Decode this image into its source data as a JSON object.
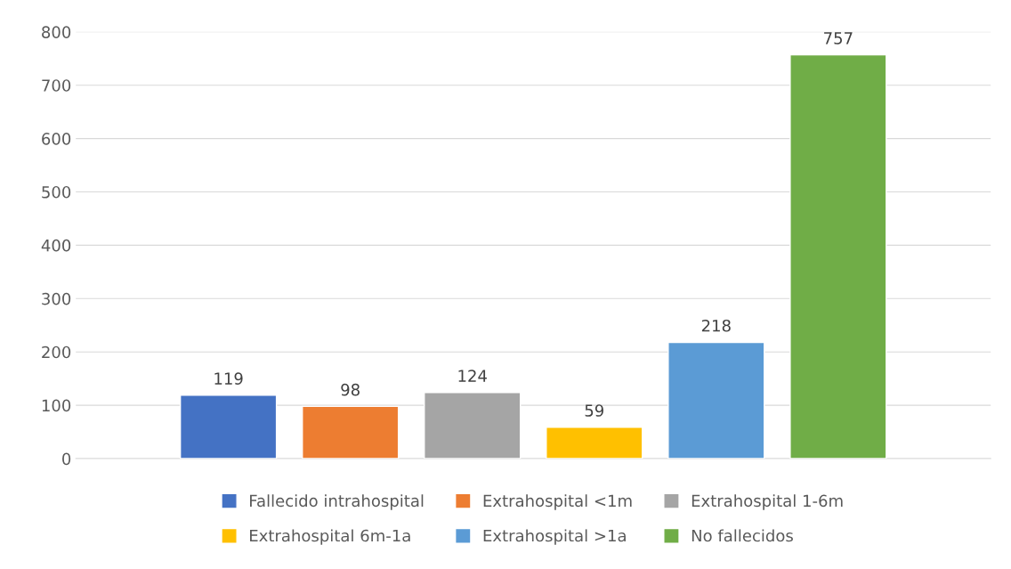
{
  "chart_data": {
    "type": "bar",
    "categories": [
      null
    ],
    "series": [
      {
        "name": "Fallecido intrahospital",
        "color": "#4472c4",
        "values": [
          119
        ]
      },
      {
        "name": "Extrahospital <1m",
        "color": "#ed7d31",
        "values": [
          98
        ]
      },
      {
        "name": "Extrahospital 1-6m",
        "color": "#a5a5a5",
        "values": [
          124
        ]
      },
      {
        "name": "Extrahospital 6m-1a",
        "color": "#ffc000",
        "values": [
          59
        ]
      },
      {
        "name": "Extrahospital >1a",
        "color": "#5b9bd5",
        "values": [
          218
        ]
      },
      {
        "name": "No fallecidos",
        "color": "#70ad47",
        "values": [
          757
        ]
      }
    ],
    "ylim": [
      0,
      800
    ],
    "yticks": [
      0,
      100,
      200,
      300,
      400,
      500,
      600,
      700,
      800
    ],
    "grid": "y",
    "legend": "bottom",
    "data_labels": true
  }
}
